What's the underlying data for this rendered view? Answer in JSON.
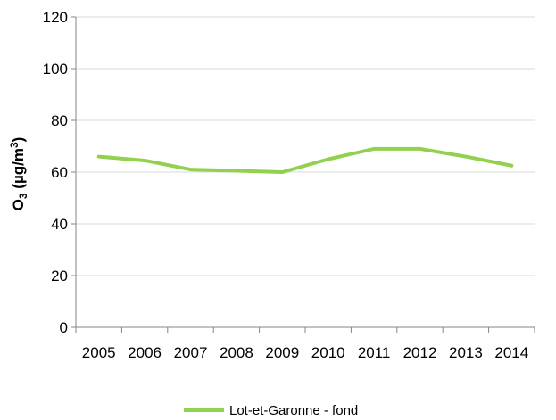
{
  "chart_data": {
    "type": "line",
    "title": "",
    "xlabel": "",
    "ylabel": {
      "prefix": "O",
      "sub": "3",
      "mid": " (µg/m",
      "sup": "3",
      "suffix": ")"
    },
    "x": [
      "2005",
      "2006",
      "2007",
      "2008",
      "2009",
      "2010",
      "2011",
      "2012",
      "2013",
      "2014"
    ],
    "ylim": [
      0,
      120
    ],
    "yticks": [
      0,
      20,
      40,
      60,
      80,
      100,
      120
    ],
    "grid": "horizontal",
    "legend": "bottom-center",
    "series": [
      {
        "name": "Lot-et-Garonne - fond",
        "color": "#92d050",
        "values": [
          66,
          64.5,
          61,
          60.5,
          60,
          65,
          69,
          69,
          66,
          62.5
        ]
      }
    ]
  }
}
